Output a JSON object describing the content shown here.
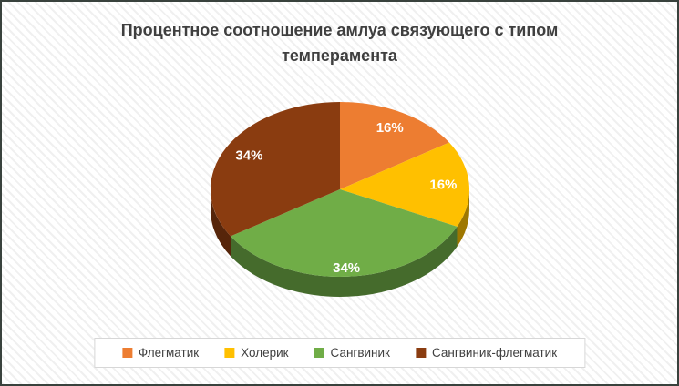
{
  "chart_data": {
    "type": "pie",
    "style": "3d",
    "title": "Процентное соотношение амлуа связующего с типом темперамента",
    "labels": [
      "Флегматик",
      "Холерик",
      "Сангвиник",
      "Сангвиник-флегматик"
    ],
    "values": [
      16,
      16,
      34,
      34
    ],
    "data_labels": [
      "16%",
      "16%",
      "34%",
      "34%"
    ],
    "colors": [
      "#ED7D31",
      "#FFC000",
      "#70AD47",
      "#8A3C10"
    ],
    "start_angle_deg": 0,
    "direction": "clockwise",
    "legend_position": "bottom",
    "data_label_color": "#FFFFFF"
  },
  "frame": {
    "border_color": "#39423D",
    "background": "#FFFFFF",
    "pattern": "diagonal-hatch"
  }
}
